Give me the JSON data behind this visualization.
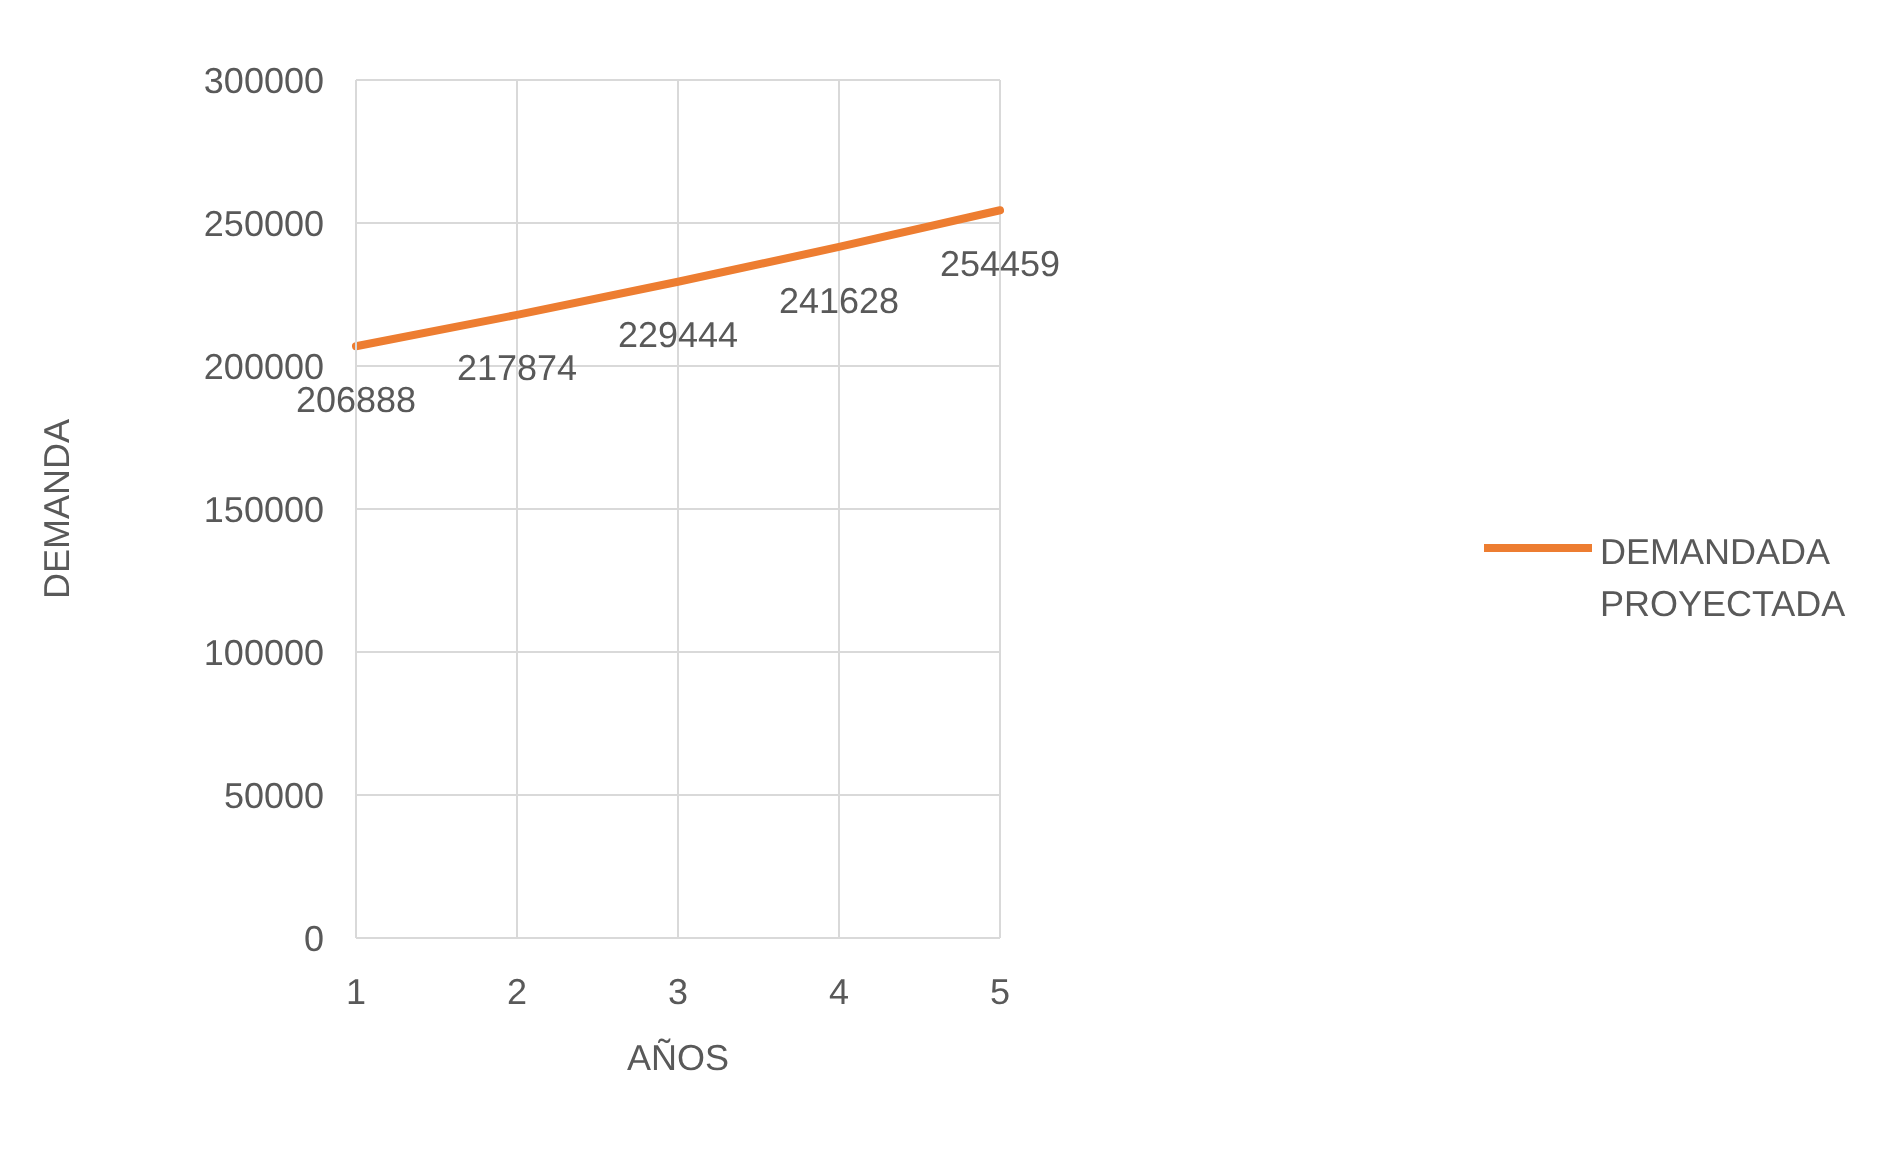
{
  "chart_data": {
    "type": "line",
    "xlabel": "AÑOS",
    "ylabel": "DEMANDA",
    "categories": [
      "1",
      "2",
      "3",
      "4",
      "5"
    ],
    "series": [
      {
        "name": "DEMANDADA PROYECTADA",
        "color": "#ed7d31",
        "values": [
          206888,
          217874,
          229444,
          241628,
          254459
        ]
      }
    ],
    "ylim": [
      0,
      300000
    ],
    "yticks": [
      0,
      50000,
      100000,
      150000,
      200000,
      250000,
      300000
    ],
    "grid": true,
    "legend": "right",
    "data_labels": true,
    "marker": "none"
  }
}
